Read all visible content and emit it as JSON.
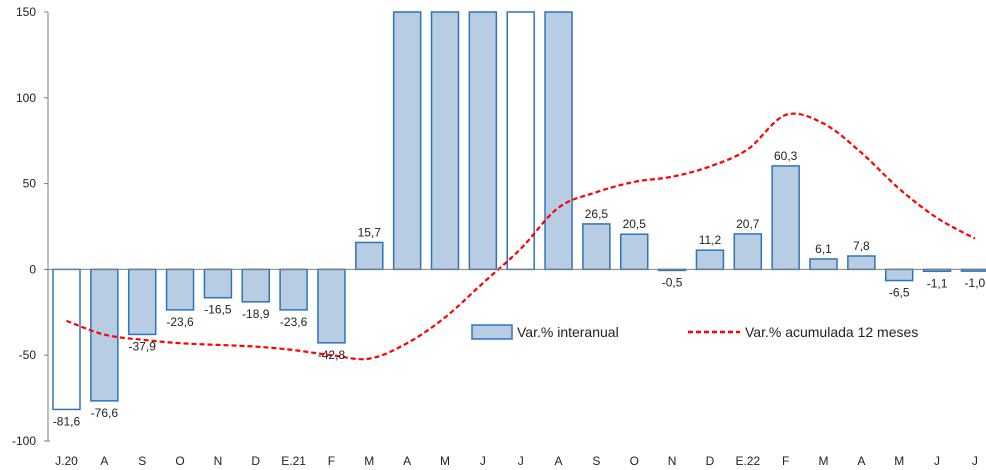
{
  "chart_data": {
    "type": "bar",
    "categories": [
      "J.20",
      "A",
      "S",
      "O",
      "N",
      "D",
      "E.21",
      "F",
      "M",
      "A",
      "M",
      "J",
      "J",
      "A",
      "S",
      "O",
      "N",
      "D",
      "E.22",
      "F",
      "M",
      "A",
      "M",
      "J",
      "J"
    ],
    "y_ticks": [
      "150",
      "100",
      "50",
      "0",
      "-50",
      "-100"
    ],
    "ylim": [
      -100,
      150
    ],
    "grid": false,
    "legend_position": "center-right",
    "series": [
      {
        "name": "Var.% interanual",
        "kind": "bar",
        "color": "#b8cce4",
        "edge_color": "#2e75b6",
        "values": [
          -81.6,
          -76.6,
          -37.9,
          -23.6,
          -16.5,
          -18.9,
          -23.6,
          -42.8,
          15.7,
          150,
          150,
          150,
          150,
          150,
          26.5,
          20.5,
          -0.5,
          11.2,
          20.7,
          60.3,
          6.1,
          7.8,
          -6.5,
          -1.1,
          -1.0
        ],
        "labels": [
          "-81,6",
          "-76,6",
          "-37,9",
          "-23,6",
          "-16,5",
          "-18,9",
          "-23,6",
          "-42,8",
          "15,7",
          "",
          "",
          "",
          "",
          "",
          "26,5",
          "20,5",
          "-0,5",
          "11,2",
          "20,7",
          "60,3",
          "6,1",
          "7,8",
          "-6,5",
          "-1,1",
          "-1,0"
        ],
        "fill_flags": [
          false,
          true,
          true,
          true,
          true,
          true,
          true,
          true,
          true,
          true,
          true,
          true,
          false,
          true,
          true,
          true,
          true,
          true,
          true,
          true,
          true,
          true,
          true,
          true,
          true
        ]
      },
      {
        "name": "Var.% acumulada 12 meses",
        "kind": "line",
        "color": "#ff0000",
        "style": "dashed",
        "values": [
          -30,
          -38,
          -41,
          -43,
          -44,
          -45,
          -47,
          -50,
          -52,
          -43,
          -28,
          -8,
          12,
          36,
          45,
          51,
          54,
          60,
          70,
          90,
          85,
          68,
          47,
          30,
          18
        ]
      }
    ]
  }
}
